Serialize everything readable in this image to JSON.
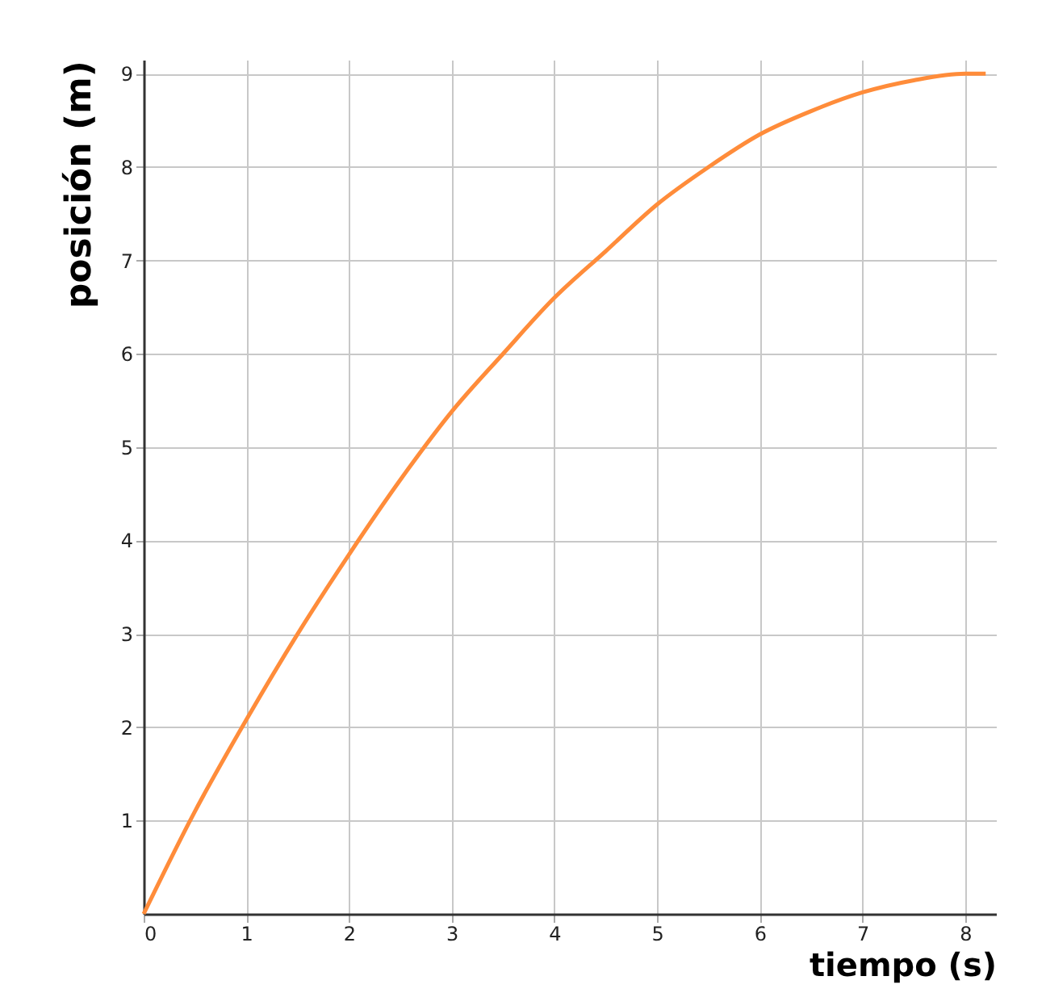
{
  "chart_data": {
    "type": "line",
    "xlabel": "tiempo (s)",
    "ylabel": "posición (m)",
    "x": [
      0,
      0.5,
      1,
      1.5,
      2,
      2.5,
      3,
      3.5,
      4,
      4.5,
      5,
      5.5,
      6,
      6.5,
      7,
      7.5,
      8,
      8.2
    ],
    "series": [
      {
        "color": "#ff8c3a",
        "values": [
          0,
          1.1,
          2.08,
          3.0,
          3.85,
          4.65,
          5.38,
          6.0,
          6.6,
          7.1,
          7.6,
          8.0,
          8.35,
          8.6,
          8.8,
          8.93,
          9.0,
          9.0
        ]
      }
    ],
    "xlim": [
      0,
      8.3
    ],
    "ylim": [
      0,
      9.15
    ],
    "xticks": [
      0,
      1,
      2,
      3,
      4,
      5,
      6,
      7,
      8
    ],
    "yticks": [
      1,
      2,
      3,
      4,
      5,
      6,
      7,
      8,
      9
    ],
    "grid": true,
    "marker": "none",
    "line_style": "solid"
  }
}
